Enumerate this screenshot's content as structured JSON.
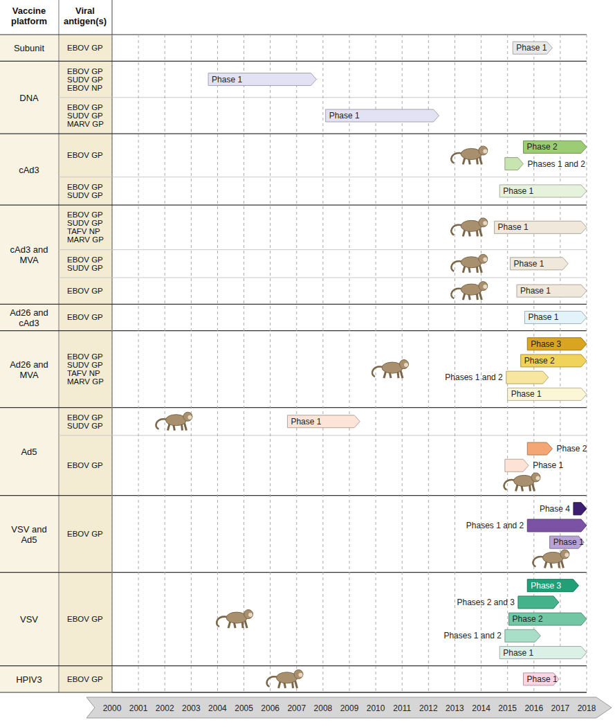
{
  "chart_data": {
    "type": "gantt",
    "orientation": "horizontal",
    "grid": true,
    "headers": [
      "Vaccine platform",
      "Viral antigen(s)"
    ],
    "xlim": [
      2000,
      2018
    ],
    "xticks": [
      2000,
      2001,
      2002,
      2003,
      2004,
      2005,
      2006,
      2007,
      2008,
      2009,
      2010,
      2011,
      2012,
      2013,
      2014,
      2015,
      2016,
      2017,
      2018
    ],
    "groups": [
      {
        "platform": "Subunit",
        "entries": [
          {
            "antigens": [
              "EBOV GP"
            ],
            "bars": [
              {
                "name": "Phase 1",
                "start": 2015.2,
                "end": 2016.7,
                "color": "#e8e8e8"
              }
            ]
          }
        ]
      },
      {
        "platform": "DNA",
        "entries": [
          {
            "antigens": [
              "EBOV GP",
              "SUDV GP",
              "EBOV NP"
            ],
            "bars": [
              {
                "name": "Phase 1",
                "start": 2003.65,
                "end": 2007.75,
                "color": "#e3e2f4"
              }
            ]
          },
          {
            "antigens": [
              "EBOV GP",
              "SUDV GP",
              "MARV GP"
            ],
            "bars": [
              {
                "name": "Phase 1",
                "start": 2008.1,
                "end": 2012.4,
                "color": "#e3e2f4"
              }
            ]
          }
        ]
      },
      {
        "platform": "cAd3",
        "entries": [
          {
            "antigens": [
              "EBOV GP"
            ],
            "nhp_study": 2013.6,
            "bars": [
              {
                "name": "Phase 2",
                "start": 2015.6,
                "end": 2018,
                "color": "#9ccc74"
              },
              {
                "name": "Phases 1 and 2",
                "start": 2014.9,
                "end": 2015.6,
                "color": "#c8e4b0"
              }
            ]
          },
          {
            "antigens": [
              "EBOV GP",
              "SUDV GP"
            ],
            "bars": [
              {
                "name": "Phase 1",
                "start": 2014.7,
                "end": 2018,
                "color": "#e6f2dc"
              }
            ]
          }
        ]
      },
      {
        "platform": "cAd3 and MVA",
        "entries": [
          {
            "antigens": [
              "EBOV GP",
              "SUDV GP",
              "TAFV NP",
              "MARV GP"
            ],
            "nhp_study": 2013.6,
            "bars": [
              {
                "name": "Phase 1",
                "start": 2014.5,
                "end": 2018,
                "color": "#f0e8da"
              }
            ]
          },
          {
            "antigens": [
              "EBOV GP",
              "SUDV GP"
            ],
            "nhp_study": 2013.6,
            "bars": [
              {
                "name": "Phase 1",
                "start": 2015.1,
                "end": 2017.3,
                "color": "#f0e8da"
              }
            ]
          },
          {
            "antigens": [
              "EBOV GP"
            ],
            "nhp_study": 2013.6,
            "bars": [
              {
                "name": "Phase 1",
                "start": 2015.35,
                "end": 2018,
                "color": "#f0e8da"
              }
            ]
          }
        ]
      },
      {
        "platform": "Ad26 and cAd3",
        "entries": [
          {
            "antigens": [
              "EBOV GP"
            ],
            "bars": [
              {
                "name": "Phase 1",
                "start": 2015.65,
                "end": 2018,
                "color": "#e2f4f9"
              }
            ]
          }
        ]
      },
      {
        "platform": "Ad26 and MVA",
        "entries": [
          {
            "antigens": [
              "EBOV GP",
              "SUDV GP",
              "TAFV NP",
              "MARV GP"
            ],
            "nhp_study": 2010.6,
            "bars": [
              {
                "name": "Phase 3",
                "start": 2015.75,
                "end": 2018,
                "color": "#d9a520"
              },
              {
                "name": "Phase 2",
                "start": 2015.5,
                "end": 2018,
                "color": "#f0d35a"
              },
              {
                "name": "Phases 1 and 2",
                "start": 2014.95,
                "end": 2016.55,
                "color": "#f7e6a0"
              },
              {
                "name": "Phase 1",
                "start": 2015.0,
                "end": 2018,
                "color": "#fbf6d6"
              }
            ]
          }
        ]
      },
      {
        "platform": "Ad5",
        "entries": [
          {
            "antigens": [
              "EBOV GP",
              "SUDV GP"
            ],
            "nhp_study": 2002.4,
            "bars": [
              {
                "name": "Phase 1",
                "start": 2006.65,
                "end": 2009.4,
                "color": "#fce4d8"
              }
            ]
          },
          {
            "antigens": [
              "EBOV GP"
            ],
            "nhp_study": 2015.6,
            "bars": [
              {
                "name": "Phase 2",
                "start": 2015.75,
                "end": 2016.7,
                "color": "#f4a774"
              },
              {
                "name": "Phase 1",
                "start": 2014.9,
                "end": 2015.8,
                "color": "#fde3d5"
              }
            ]
          }
        ]
      },
      {
        "platform": "VSV and Ad5",
        "entries": [
          {
            "antigens": [
              "EBOV GP"
            ],
            "nhp_study": 2016.7,
            "bars": [
              {
                "name": "Phase 4",
                "start": 2017.5,
                "end": 2018,
                "color": "#3c1f6e"
              },
              {
                "name": "Phases 1 and 2",
                "start": 2015.75,
                "end": 2018,
                "color": "#7b52a6"
              },
              {
                "name": "Phase 1",
                "start": 2016.6,
                "end": 2017.9,
                "color": "#b7a3d8"
              }
            ]
          }
        ]
      },
      {
        "platform": "VSV",
        "entries": [
          {
            "antigens": [
              "EBOV GP"
            ],
            "nhp_study": 2004.7,
            "bars": [
              {
                "name": "Phase 3",
                "start": 2015.75,
                "end": 2017.7,
                "color": "#1fa077"
              },
              {
                "name": "Phases 2 and 3",
                "start": 2015.4,
                "end": 2016.95,
                "color": "#44b28b"
              },
              {
                "name": "Phase 2",
                "start": 2015.05,
                "end": 2018,
                "color": "#72c6a3"
              },
              {
                "name": "Phases 1 and 2",
                "start": 2014.9,
                "end": 2016.25,
                "color": "#a9dec8"
              },
              {
                "name": "Phase 1",
                "start": 2014.7,
                "end": 2018,
                "color": "#dbf1e7"
              }
            ]
          }
        ]
      },
      {
        "platform": "HPIV3",
        "entries": [
          {
            "antigens": [
              "EBOV GP"
            ],
            "nhp_study": 2006.6,
            "bars": [
              {
                "name": "Phase 1",
                "start": 2015.6,
                "end": 2016.95,
                "color": "#f9d4e3"
              }
            ]
          }
        ]
      }
    ]
  }
}
